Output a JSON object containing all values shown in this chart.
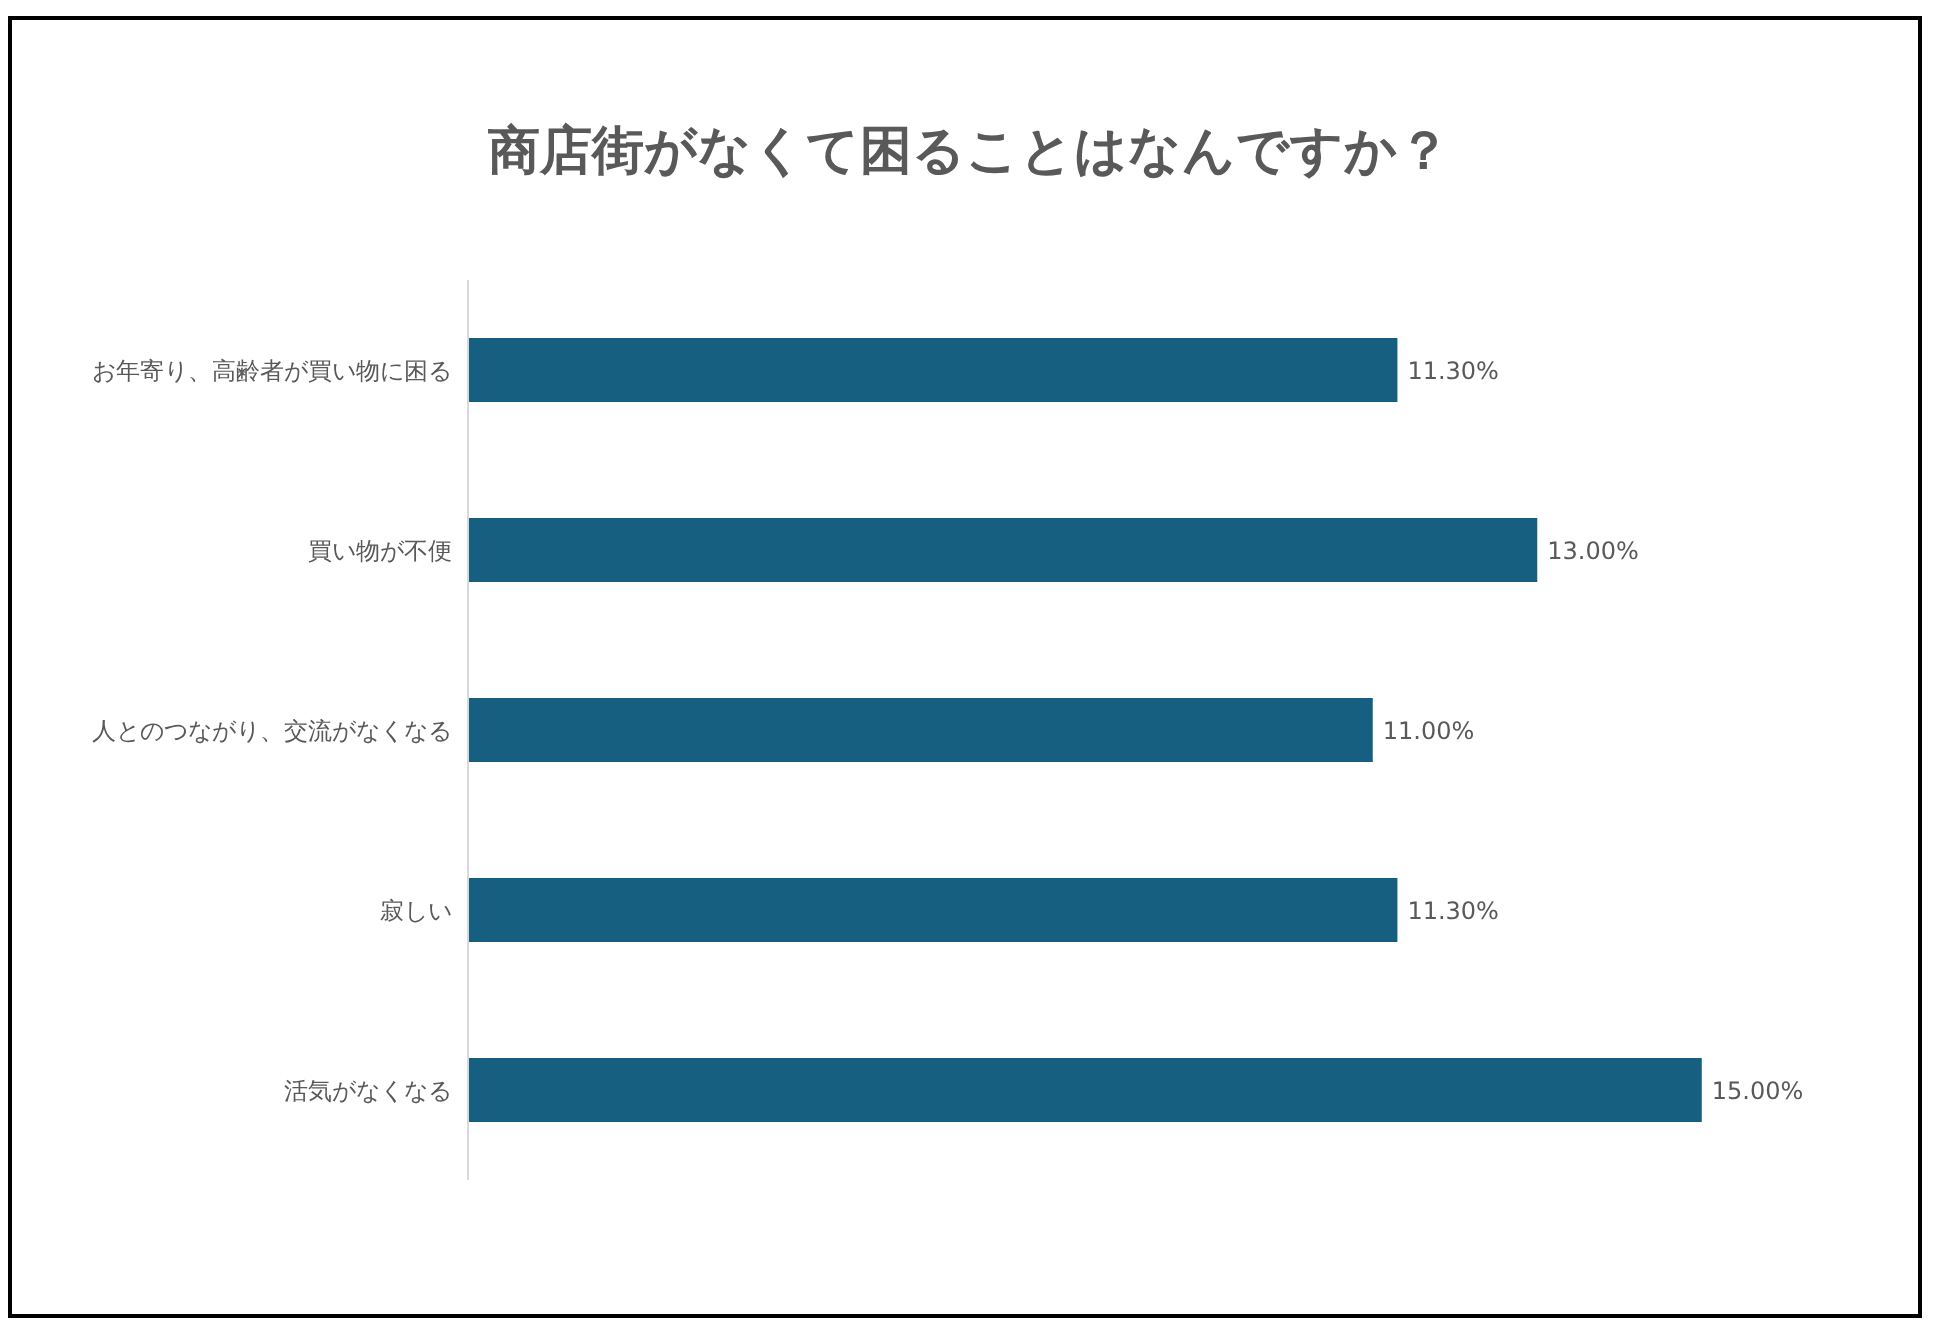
{
  "chart_data": {
    "type": "bar",
    "orientation": "horizontal",
    "title": "商店街がなくて困ることはなんですか？",
    "categories": [
      "お年寄り、高齢者が買い物に困る",
      "買い物が不便",
      "人とのつながり、交流がなくなる",
      "寂しい",
      "活気がなくなる"
    ],
    "values": [
      11.3,
      13.0,
      11.0,
      11.3,
      15.0
    ],
    "value_labels": [
      "11.30%",
      "13.00%",
      "11.00%",
      "11.30%",
      "15.00%"
    ],
    "color": "#175f80"
  }
}
